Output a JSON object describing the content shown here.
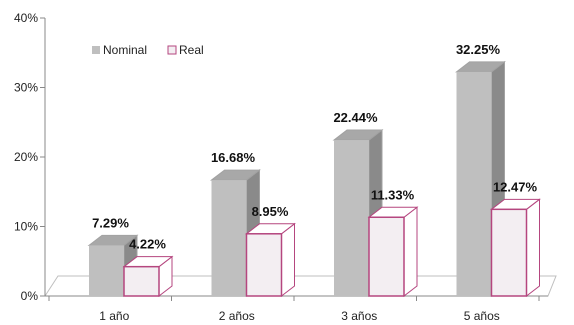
{
  "chart_data": {
    "type": "bar",
    "categories": [
      "1 año",
      "2 años",
      "3 años",
      "5 años"
    ],
    "series": [
      {
        "name": "Nominal",
        "values": [
          7.29,
          16.68,
          22.44,
          32.25
        ],
        "labels": [
          "7.29%",
          "16.68%",
          "22.44%",
          "32.25%"
        ],
        "color": "#bfbfbf"
      },
      {
        "name": "Real",
        "values": [
          4.22,
          8.95,
          11.33,
          12.47
        ],
        "labels": [
          "4.22%",
          "8.95%",
          "11.33%",
          "12.47%"
        ],
        "color": "#f3eef2",
        "border": "#b5467f"
      }
    ],
    "yticks": [
      "0%",
      "10%",
      "20%",
      "30%",
      "40%"
    ],
    "ylim": [
      0,
      40
    ],
    "legend": "top-left",
    "grid": false,
    "three_d": true
  }
}
